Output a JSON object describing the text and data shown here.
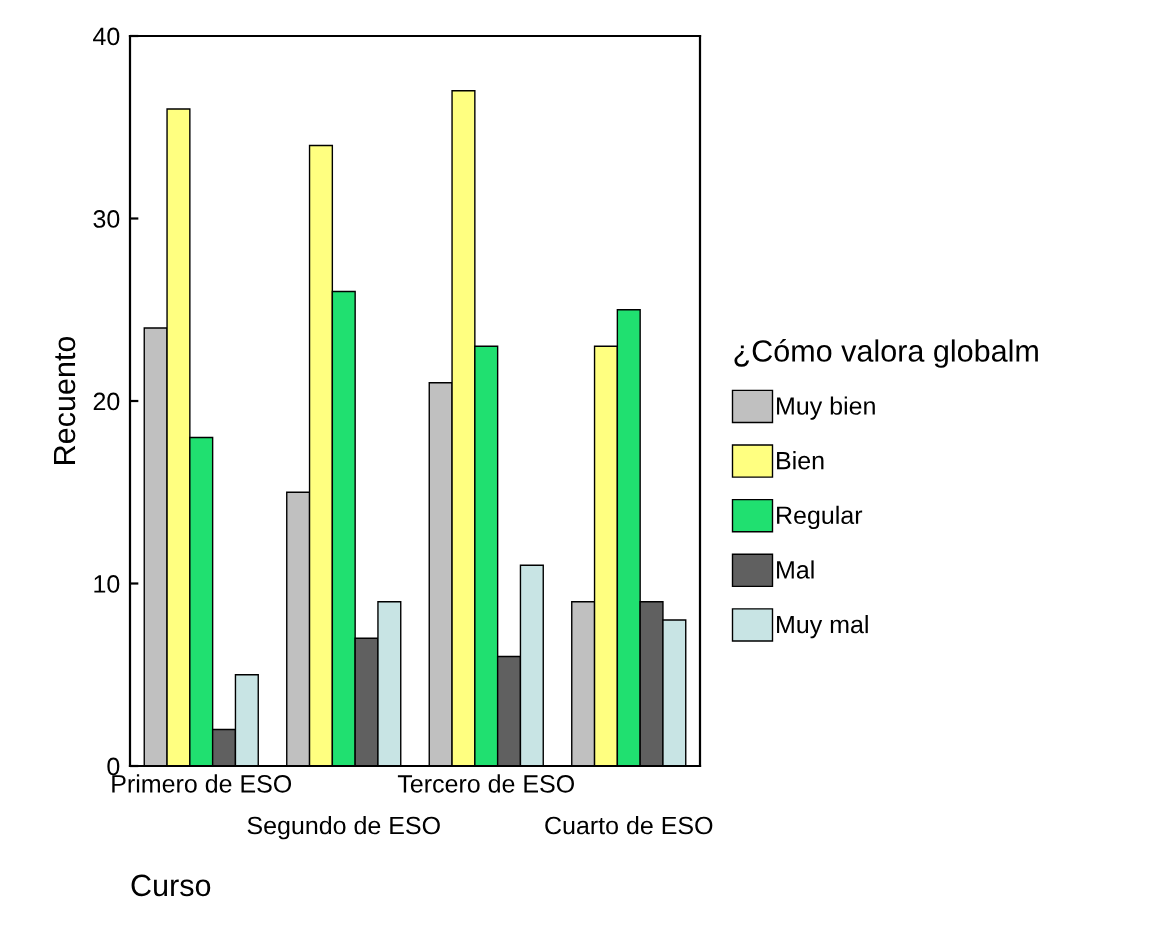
{
  "chart_data": {
    "type": "bar",
    "xlabel": "Curso",
    "ylabel": "Recuento",
    "legend_title": "¿Cómo valora globalm",
    "legend": "right",
    "grid": false,
    "categories": [
      "Primero de ESO",
      "Segundo de ESO",
      "Tercero de ESO",
      "Cuarto de ESO"
    ],
    "ylim": [
      0,
      40
    ],
    "yticks": [
      0,
      10,
      20,
      30,
      40
    ],
    "series": [
      {
        "name": "Muy bien",
        "color": "#c0c0c0",
        "values": [
          24,
          15,
          21,
          9
        ]
      },
      {
        "name": "Bien",
        "color": "#ffff80",
        "values": [
          36,
          34,
          37,
          23
        ]
      },
      {
        "name": "Regular",
        "color": "#20e070",
        "values": [
          18,
          26,
          23,
          25
        ]
      },
      {
        "name": "Mal",
        "color": "#606060",
        "values": [
          2,
          7,
          6,
          9
        ]
      },
      {
        "name": "Muy mal",
        "color": "#c8e4e4",
        "values": [
          5,
          9,
          11,
          8
        ]
      }
    ]
  }
}
